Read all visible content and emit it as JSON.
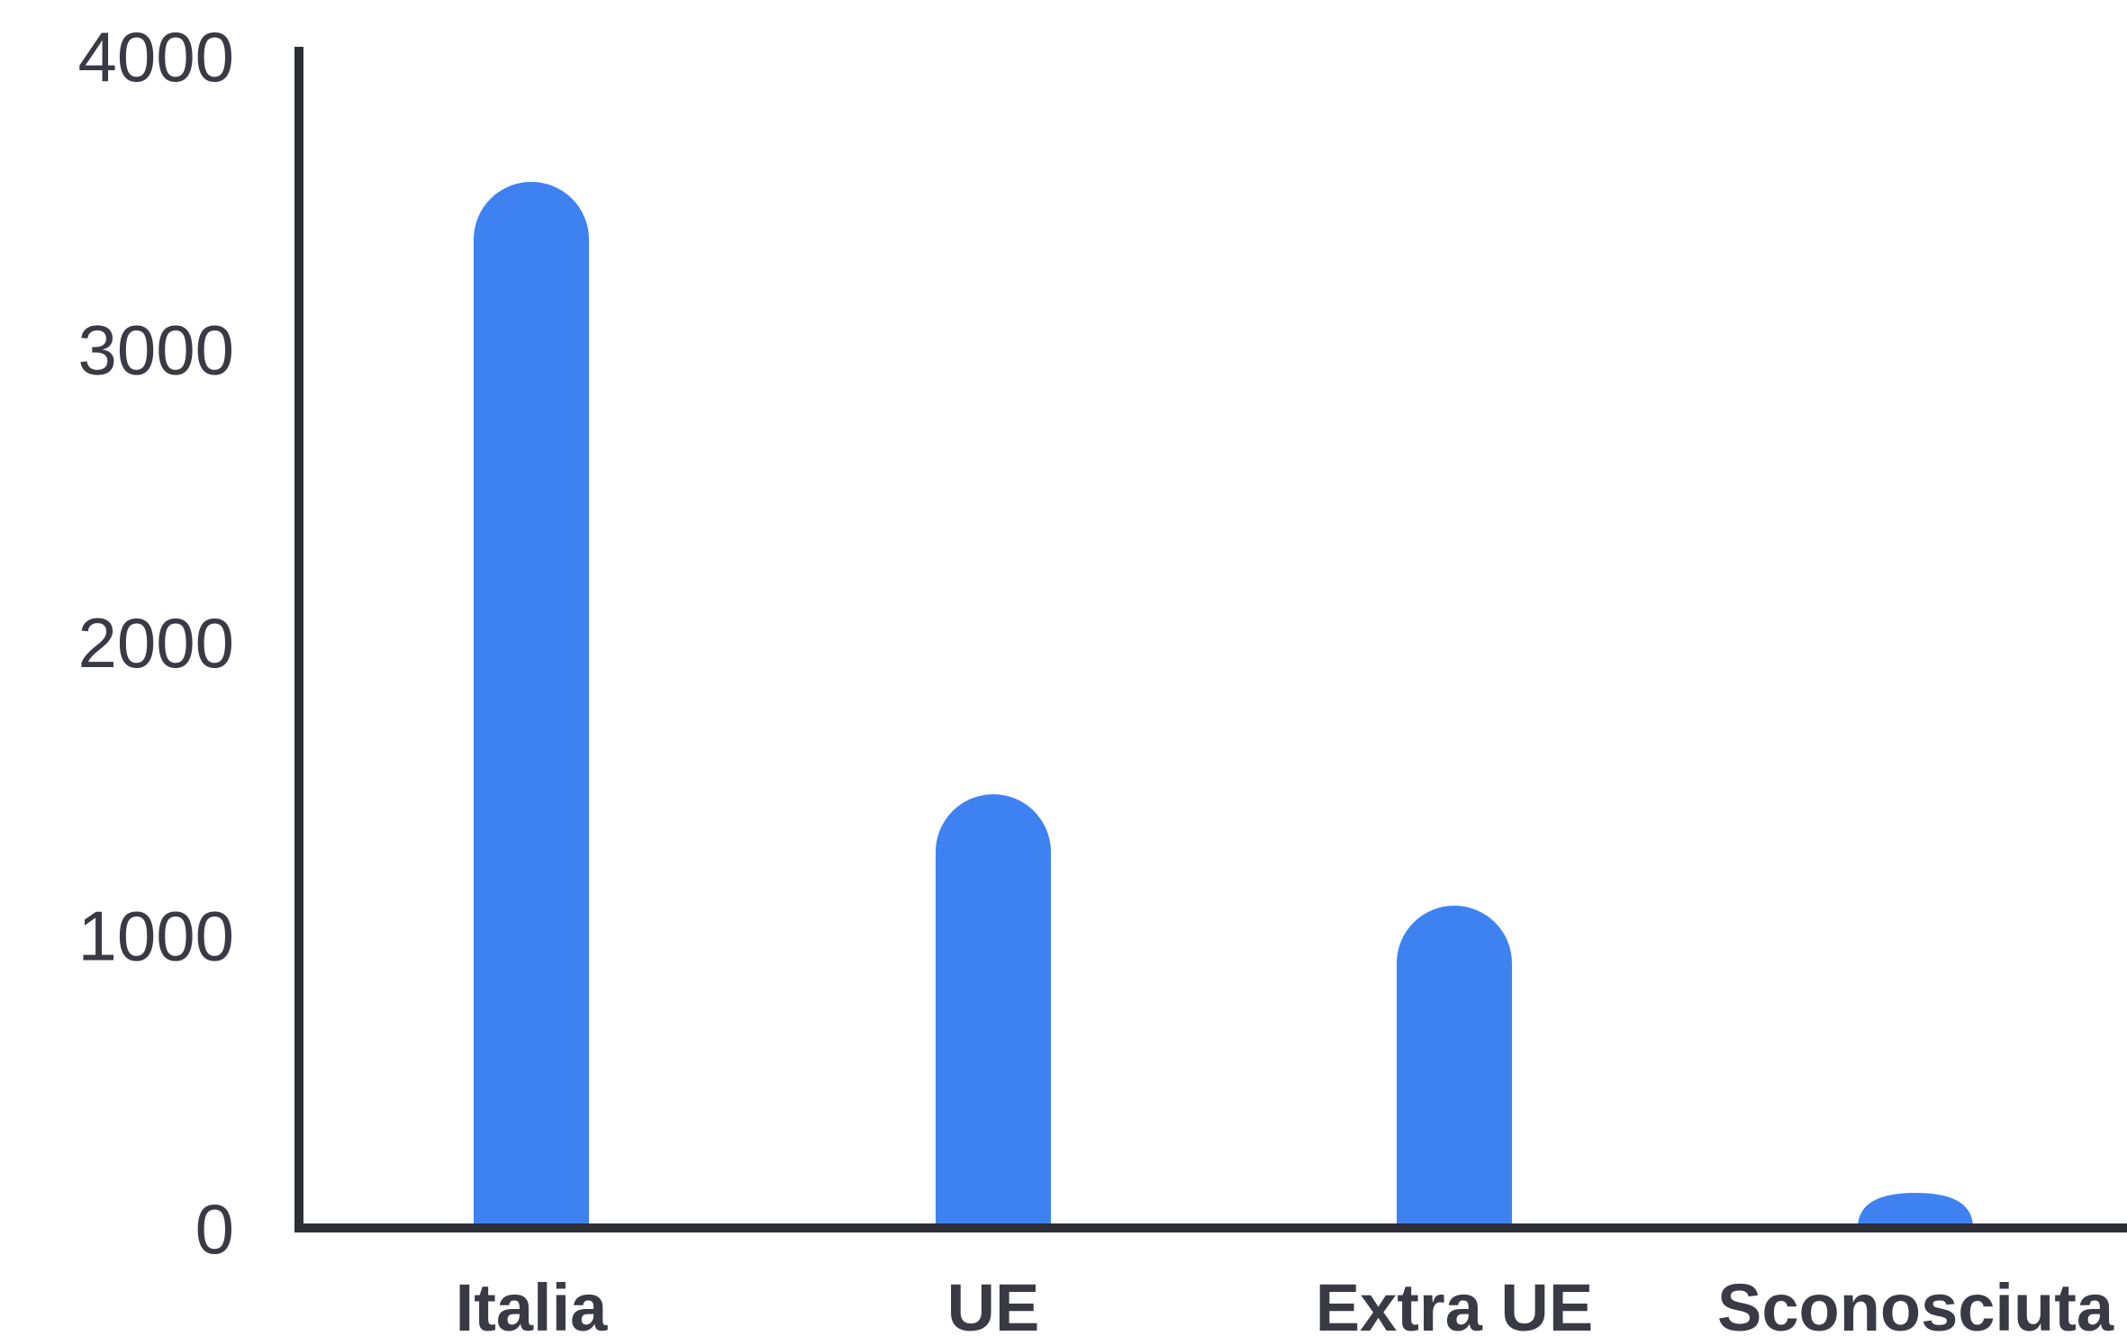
{
  "chart_data": {
    "type": "bar",
    "categories": [
      "Italia",
      "UE",
      "Extra UE",
      "Sconosciuta"
    ],
    "values": [
      3570,
      1480,
      1100,
      120
    ],
    "yticks": [
      "0",
      "1000",
      "2000",
      "3000",
      "4000"
    ],
    "ylim": [
      0,
      4000
    ],
    "title": "",
    "xlabel": "",
    "ylabel": "",
    "grid": false,
    "legend": "none",
    "colors": {
      "bar": "#3d82f0",
      "axis": "#2e2e38",
      "text": "#3a3a44"
    }
  }
}
